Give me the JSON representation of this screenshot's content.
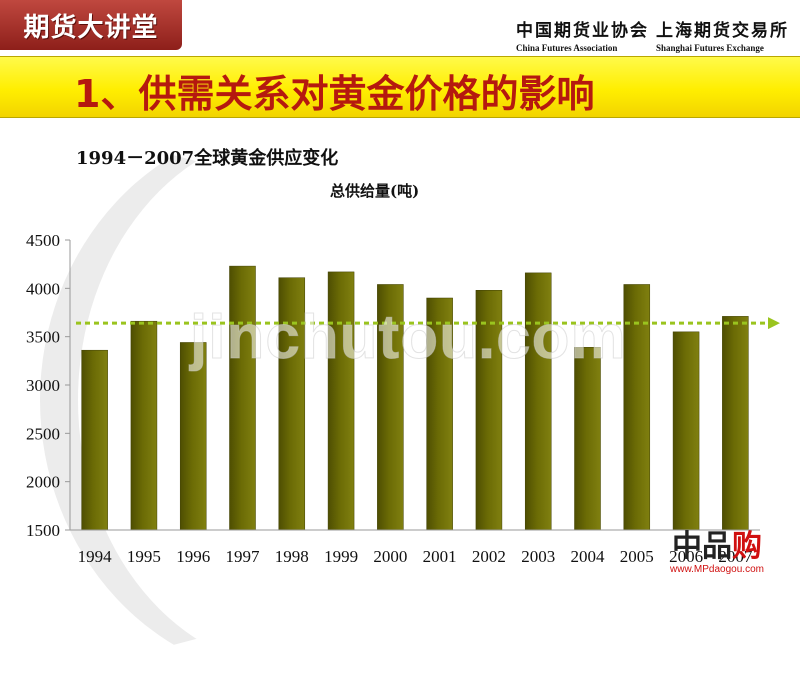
{
  "header": {
    "badge_text": "期货大讲堂",
    "assoc1_cn": "中国期货业协会",
    "assoc1_en": "China Futures Association",
    "assoc2_cn": "上海期货交易所",
    "assoc2_en": "Shanghai Futures Exchange"
  },
  "slide": {
    "title": "1、供需关系对黄金价格的影响"
  },
  "watermark": "jinchutou.com",
  "shop": {
    "brand_a": "中品",
    "brand_b": "购",
    "url": "www.MPdaogou.com"
  },
  "colors": {
    "bar": "#6b6b05",
    "average_line": "#9ac41e",
    "title_bar": "#ffee00",
    "title_text": "#b5190f",
    "badge": "#a8302a"
  },
  "chart_data": {
    "type": "bar",
    "title": "1994－2007全球黄金供应变化",
    "series_title": "总供给量(吨)",
    "categories": [
      "1994",
      "1995",
      "1996",
      "1997",
      "1998",
      "1999",
      "2000",
      "2001",
      "2002",
      "2003",
      "2004",
      "2005",
      "2006",
      "2007"
    ],
    "values": [
      3360,
      3660,
      3440,
      4230,
      4110,
      4170,
      4040,
      3900,
      3980,
      4160,
      3390,
      4040,
      3550,
      3710
    ],
    "ylim": [
      1500,
      4500
    ],
    "yticks": [
      "1500",
      "2000",
      "2500",
      "3000",
      "3500",
      "4000",
      "4500"
    ],
    "average_line": 3640,
    "grid": false,
    "legend": "none"
  }
}
